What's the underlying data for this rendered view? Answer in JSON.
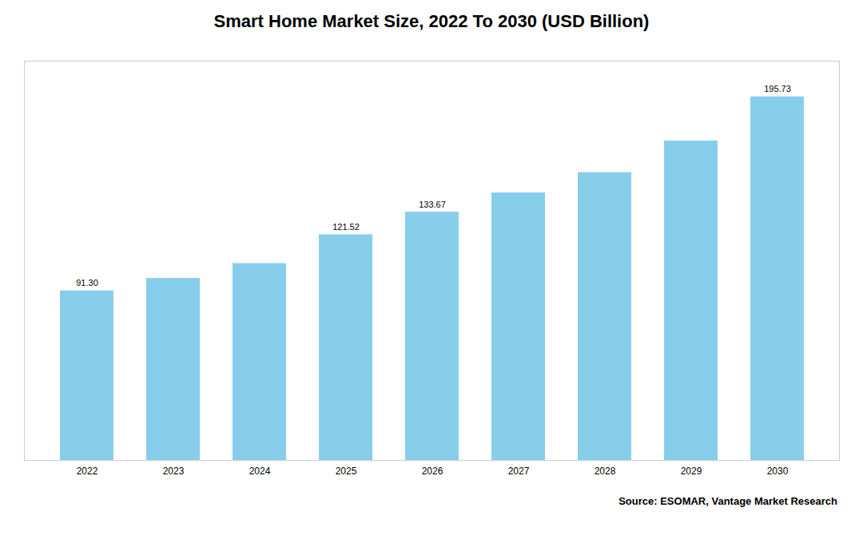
{
  "chart_data": {
    "type": "bar",
    "title": "Smart Home Market Size, 2022 To 2030 (USD Billion)",
    "categories": [
      "2022",
      "2023",
      "2024",
      "2025",
      "2026",
      "2027",
      "2028",
      "2029",
      "2030"
    ],
    "values": [
      91.3,
      98.0,
      106.0,
      121.52,
      133.67,
      144.0,
      155.0,
      172.0,
      195.73
    ],
    "value_labels": [
      "91.30",
      null,
      null,
      "121.52",
      "133.67",
      null,
      null,
      null,
      "195.73"
    ],
    "data_labels": true,
    "color": "#87CEEB",
    "ylim": [
      0,
      215
    ],
    "tick_labels": "x",
    "annotations": [
      "Source: ESOMAR, Vantage Market Research"
    ]
  }
}
